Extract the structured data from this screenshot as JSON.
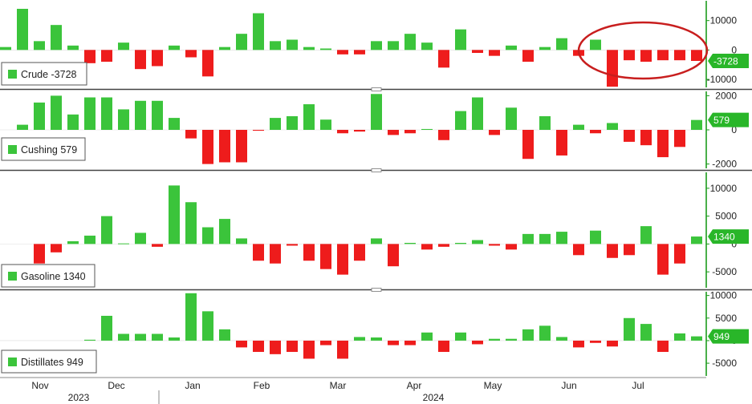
{
  "colors": {
    "positive": "#3bc43b",
    "negative": "#ee1c1c",
    "axis_line": "#1c9b1c",
    "tag_bg": "#29b629",
    "annotation": "#c81e1e"
  },
  "chart_data": [
    {
      "type": "bar",
      "legend": "Crude -3728",
      "value_tag": "-3728",
      "ylim": [
        -13000,
        17000
      ],
      "yticks": [
        -10000,
        0,
        10000
      ],
      "ytick_labels": [
        "-10000",
        "0",
        "10000"
      ],
      "values": [
        1000,
        14000,
        3000,
        8500,
        1500,
        -4500,
        -4000,
        2500,
        -6500,
        -5500,
        1500,
        -2500,
        -9000,
        1000,
        5500,
        12500,
        3000,
        3500,
        1000,
        500,
        -1500,
        -1500,
        3000,
        3000,
        5500,
        2500,
        -6000,
        7000,
        -1000,
        -2000,
        1500,
        -4000,
        1000,
        4000,
        -2000,
        3500,
        -12500,
        -3500,
        -4000,
        -3500,
        -3500,
        -3728
      ]
    },
    {
      "type": "bar",
      "legend": "Cushing 579",
      "value_tag": "579",
      "ylim": [
        -2300,
        2300
      ],
      "yticks": [
        -2000,
        0,
        2000
      ],
      "ytick_labels": [
        "-2000",
        "0",
        "2000"
      ],
      "values": [
        300,
        1600,
        2000,
        900,
        1900,
        1900,
        1200,
        1700,
        1700,
        700,
        -500,
        -2000,
        -1900,
        -1900,
        -50,
        700,
        800,
        1500,
        600,
        -200,
        -100,
        2100,
        -300,
        -200,
        50,
        -600,
        1100,
        1900,
        -300,
        1300,
        -1700,
        800,
        -1500,
        300,
        -200,
        400,
        -700,
        -900,
        -1600,
        -1000,
        579
      ]
    },
    {
      "type": "bar",
      "legend": "Gasoline 1340",
      "value_tag": "1340",
      "ylim": [
        -8000,
        13000
      ],
      "yticks": [
        -5000,
        0,
        5000,
        10000
      ],
      "ytick_labels": [
        "-5000",
        "0",
        "5000",
        "10000"
      ],
      "values": [
        -3500,
        -1500,
        500,
        1500,
        5000,
        100,
        2000,
        -500,
        10500,
        7500,
        3000,
        4500,
        1000,
        -3000,
        -3500,
        -300,
        -3000,
        -4500,
        -5500,
        -3000,
        1000,
        -4000,
        200,
        -1000,
        -500,
        200,
        700,
        -300,
        -1000,
        1800,
        1800,
        2200,
        -2000,
        2400,
        -2500,
        -2000,
        3200,
        -5500,
        -3500,
        1340
      ]
    },
    {
      "type": "bar",
      "legend": "Distillates 949",
      "value_tag": "949",
      "ylim": [
        -8000,
        11000
      ],
      "yticks": [
        -5000,
        0,
        5000,
        10000
      ],
      "ytick_labels": [
        "-5000",
        "0",
        "5000",
        "10000"
      ],
      "values": [
        200,
        5500,
        1500,
        1500,
        1500,
        700,
        10500,
        6500,
        2500,
        -1500,
        -2500,
        -3000,
        -2500,
        -4000,
        -1000,
        -4000,
        800,
        700,
        -1000,
        -1000,
        1800,
        -2500,
        1800,
        -800,
        400,
        400,
        2500,
        3300,
        800,
        -1500,
        -500,
        -1300,
        5000,
        3700,
        -2500,
        1600,
        949
      ]
    }
  ],
  "x_axis": {
    "month_labels": [
      "Nov",
      "Dec",
      "Jan",
      "Feb",
      "Mar",
      "Apr",
      "May",
      "Jun",
      "Jul"
    ],
    "year_labels": [
      "2023",
      "2024"
    ]
  }
}
